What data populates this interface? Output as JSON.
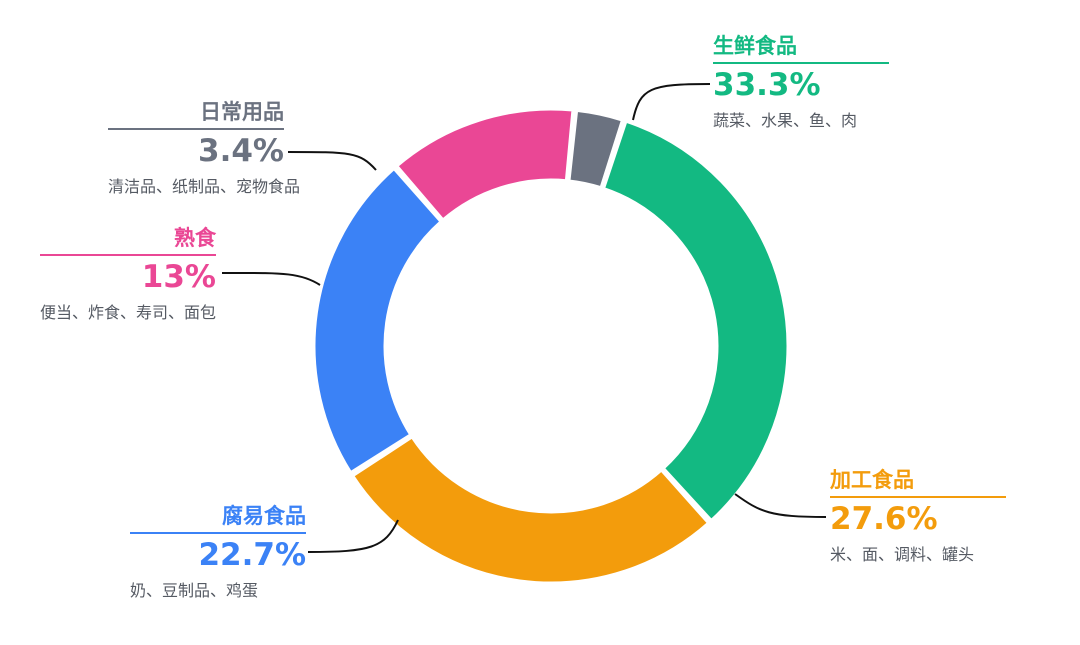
{
  "chart_data": {
    "type": "pie",
    "title": "",
    "series": [
      {
        "name": "生鲜食品",
        "value": 33.3,
        "value_label": "33.3%",
        "description": "蔬菜、水果、鱼、肉",
        "color": "#13b982"
      },
      {
        "name": "加工食品",
        "value": 27.6,
        "value_label": "27.6%",
        "description": "米、面、调料、罐头",
        "color": "#f39c0c"
      },
      {
        "name": "腐易食品",
        "value": 22.7,
        "value_label": "22.7%",
        "description": "奶、豆制品、鸡蛋",
        "color": "#3b82f6"
      },
      {
        "name": "熟食",
        "value": 13.0,
        "value_label": "13%",
        "description": "便当、炸食、寿司、面包",
        "color": "#ea4795"
      },
      {
        "name": "日常用品",
        "value": 3.4,
        "value_label": "3.4%",
        "description": "清洁品、纸制品、宠物食品",
        "color": "#6b7280"
      }
    ]
  }
}
